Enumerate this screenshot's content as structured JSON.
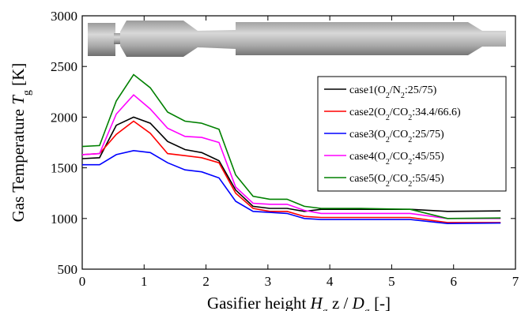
{
  "chart_data": {
    "type": "line",
    "xlabel": [
      {
        "text": "Gasifier height "
      },
      {
        "text": "H",
        "italic": true
      },
      {
        "text": "g",
        "sub": true
      },
      {
        "text": "  z / "
      },
      {
        "text": "D",
        "italic": true
      },
      {
        "text": "g",
        "sub": true
      },
      {
        "text": " [-]"
      }
    ],
    "ylabel": [
      {
        "text": "Gas Temperature "
      },
      {
        "text": "T",
        "italic": true
      },
      {
        "text": "g",
        "sub": true
      },
      {
        "text": " [K]"
      }
    ],
    "x": [
      0,
      0.28,
      0.55,
      0.83,
      1.1,
      1.38,
      1.66,
      1.93,
      2.21,
      2.48,
      2.76,
      3.03,
      3.31,
      3.59,
      3.86,
      4.5,
      5.3,
      5.9,
      6.76
    ],
    "series": [
      {
        "name": "case1(O2/N2:25/75)",
        "color": "#000000",
        "values": [
          1590,
          1600,
          1920,
          2000,
          1940,
          1760,
          1680,
          1650,
          1570,
          1280,
          1120,
          1100,
          1100,
          1070,
          1090,
          1090,
          1090,
          1070,
          1075
        ]
      },
      {
        "name": "case2(O2/CO2:34.4/66.6)",
        "color": "#ff0000",
        "values": [
          1630,
          1640,
          1830,
          1960,
          1840,
          1640,
          1620,
          1600,
          1550,
          1250,
          1100,
          1070,
          1070,
          1020,
          1010,
          1010,
          1010,
          960,
          960
        ]
      },
      {
        "name": "case3(O2/CO2:25/75)",
        "color": "#0000ff",
        "values": [
          1530,
          1530,
          1630,
          1670,
          1650,
          1550,
          1480,
          1460,
          1400,
          1170,
          1070,
          1060,
          1050,
          1000,
          990,
          990,
          990,
          950,
          955
        ]
      },
      {
        "name": "case4(O2/CO2:45/55)",
        "color": "#ff00ff",
        "values": [
          1630,
          1640,
          2030,
          2220,
          2080,
          1890,
          1810,
          1800,
          1750,
          1310,
          1150,
          1140,
          1140,
          1080,
          1050,
          1050,
          1050,
          1000,
          1000
        ]
      },
      {
        "name": "case5(O2/CO2:55/45)",
        "color": "#008000",
        "values": [
          1710,
          1720,
          2160,
          2420,
          2290,
          2050,
          1960,
          1940,
          1880,
          1430,
          1220,
          1190,
          1190,
          1120,
          1100,
          1100,
          1090,
          1000,
          1005
        ]
      }
    ],
    "xlim": [
      0,
      7
    ],
    "xticks": [
      0,
      1,
      2,
      3,
      4,
      5,
      6,
      7
    ],
    "ylim": [
      500,
      3000
    ],
    "yticks": [
      500,
      1000,
      1500,
      2000,
      2500,
      3000
    ],
    "legend": "upper right"
  }
}
